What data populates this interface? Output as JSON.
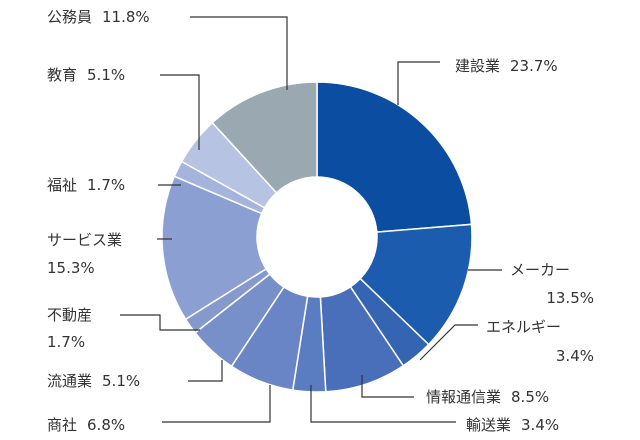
{
  "chart_data": {
    "type": "pie",
    "title": "",
    "donut": true,
    "slices": [
      {
        "label": "建設業",
        "value": 23.7,
        "value_text": "23.7%",
        "color": "#0a4da1"
      },
      {
        "label": "メーカー",
        "value": 13.5,
        "value_text": "13.5%",
        "color": "#1b5caf"
      },
      {
        "label": "エネルギー",
        "value": 3.4,
        "value_text": "3.4%",
        "color": "#3565b2"
      },
      {
        "label": "情報通信業",
        "value": 8.5,
        "value_text": "8.5%",
        "color": "#4a6fba"
      },
      {
        "label": "輸送業",
        "value": 3.4,
        "value_text": "3.4%",
        "color": "#5a7cc0"
      },
      {
        "label": "商社",
        "value": 6.8,
        "value_text": "6.8%",
        "color": "#6a85c5"
      },
      {
        "label": "流通業",
        "value": 5.1,
        "value_text": "5.1%",
        "color": "#7890c9"
      },
      {
        "label": "不動産",
        "value": 1.7,
        "value_text": "1.7%",
        "color": "#8599cd"
      },
      {
        "label": "サービス業",
        "value": 15.3,
        "value_text": "15.3%",
        "color": "#8c9fd2"
      },
      {
        "label": "福祉",
        "value": 1.7,
        "value_text": "1.7%",
        "color": "#a4b4dc"
      },
      {
        "label": "教育",
        "value": 5.1,
        "value_text": "5.1%",
        "color": "#b7c3e3"
      },
      {
        "label": "公務員",
        "value": 11.8,
        "value_text": "11.8%",
        "color": "#9aa8b1"
      }
    ]
  }
}
